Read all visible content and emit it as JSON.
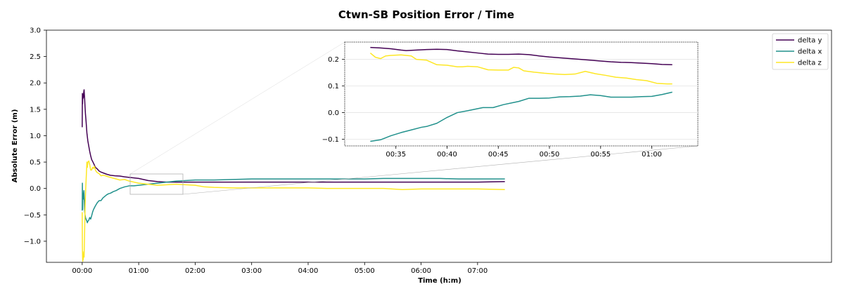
{
  "chart_data": {
    "type": "line",
    "title": "Ctwn-SB Position Error / Time",
    "xlabel": "Time (h:m)",
    "ylabel": "Absolute Error (m)",
    "x_unit": "minutes",
    "xlim": [
      -38,
      796
    ],
    "ylim": [
      -1.4,
      3.0
    ],
    "xticks": [
      {
        "v": 0,
        "label": "00:00"
      },
      {
        "v": 60,
        "label": "01:00"
      },
      {
        "v": 120,
        "label": "02:00"
      },
      {
        "v": 180,
        "label": "03:00"
      },
      {
        "v": 240,
        "label": "04:00"
      },
      {
        "v": 300,
        "label": "05:00"
      },
      {
        "v": 360,
        "label": "06:00"
      },
      {
        "v": 420,
        "label": "07:00"
      }
    ],
    "yticks": [
      {
        "v": -1.0,
        "label": "−1.0"
      },
      {
        "v": -0.5,
        "label": "−0.5"
      },
      {
        "v": 0.0,
        "label": "0.0"
      },
      {
        "v": 0.5,
        "label": "0.5"
      },
      {
        "v": 1.0,
        "label": "1.0"
      },
      {
        "v": 1.5,
        "label": "1.5"
      },
      {
        "v": 2.0,
        "label": "2.0"
      },
      {
        "v": 2.5,
        "label": "2.5"
      },
      {
        "v": 3.0,
        "label": "3.0"
      }
    ],
    "legend_position": "top-right",
    "series": [
      {
        "name": "delta y",
        "color": "#440154",
        "x": [
          0,
          0.2,
          0.4,
          0.6,
          0.8,
          1.0,
          1.2,
          1.5,
          1.8,
          2.0,
          2.3,
          2.6,
          3.0,
          3.5,
          4.0,
          5.0,
          6.0,
          7.0,
          8.0,
          9.0,
          10.0,
          12.0,
          14.0,
          16.0,
          18.0,
          20.0,
          23.0,
          26.0,
          30.0,
          35.0,
          40.0,
          45.0,
          50.0,
          55.0,
          60.0,
          65.0,
          70.0,
          80.0,
          90.0,
          100.0,
          110.0,
          120.0,
          140.0,
          160.0,
          180.0,
          200.0,
          220.0,
          240.0,
          260.0,
          280.0,
          300.0,
          320.0,
          340.0,
          360.0,
          380.0,
          400.0,
          420.0,
          449.0
        ],
        "y": [
          1.16,
          1.8,
          1.6,
          1.78,
          1.7,
          1.75,
          1.72,
          1.8,
          1.85,
          1.87,
          1.78,
          1.7,
          1.55,
          1.4,
          1.3,
          1.05,
          0.9,
          0.8,
          0.7,
          0.62,
          0.55,
          0.48,
          0.4,
          0.37,
          0.33,
          0.31,
          0.29,
          0.27,
          0.25,
          0.24,
          0.235,
          0.22,
          0.21,
          0.2,
          0.19,
          0.17,
          0.15,
          0.13,
          0.12,
          0.12,
          0.12,
          0.12,
          0.12,
          0.12,
          0.12,
          0.12,
          0.12,
          0.12,
          0.12,
          0.12,
          0.12,
          0.12,
          0.12,
          0.12,
          0.12,
          0.12,
          0.12,
          0.13
        ]
      },
      {
        "name": "delta x",
        "color": "#21918c",
        "x": [
          0,
          0.2,
          0.4,
          0.6,
          0.9,
          1.2,
          1.5,
          1.8,
          2.1,
          2.5,
          3.0,
          3.5,
          4.0,
          4.5,
          5.0,
          5.5,
          6.0,
          7.0,
          8.0,
          9.0,
          10.0,
          11.0,
          12.0,
          14.0,
          16.0,
          18.0,
          20.0,
          22.0,
          24.0,
          26.0,
          28.0,
          30.0,
          33.0,
          36.0,
          40.0,
          45.0,
          50.0,
          55.0,
          60.0,
          65.0,
          70.0,
          80.0,
          90.0,
          100.0,
          120.0,
          140.0,
          160.0,
          180.0,
          200.0,
          220.0,
          240.0,
          260.0,
          280.0,
          300.0,
          320.0,
          340.0,
          360.0,
          380.0,
          400.0,
          420.0,
          449.0
        ],
        "y": [
          -0.42,
          0.1,
          -0.4,
          -0.15,
          -0.1,
          -0.2,
          -0.08,
          -0.04,
          -0.18,
          -0.4,
          -0.5,
          -0.55,
          -0.58,
          -0.6,
          -0.62,
          -0.65,
          -0.62,
          -0.6,
          -0.55,
          -0.58,
          -0.52,
          -0.45,
          -0.4,
          -0.33,
          -0.27,
          -0.23,
          -0.23,
          -0.18,
          -0.15,
          -0.12,
          -0.1,
          -0.09,
          -0.06,
          -0.04,
          0.0,
          0.03,
          0.05,
          0.05,
          0.06,
          0.07,
          0.08,
          0.1,
          0.12,
          0.14,
          0.16,
          0.16,
          0.17,
          0.18,
          0.18,
          0.18,
          0.18,
          0.18,
          0.18,
          0.18,
          0.19,
          0.19,
          0.19,
          0.19,
          0.18,
          0.18,
          0.18
        ]
      },
      {
        "name": "delta z",
        "color": "#fde725",
        "x": [
          0,
          0.2,
          0.4,
          0.6,
          0.8,
          1.0,
          1.3,
          1.6,
          2.0,
          2.5,
          3.0,
          3.5,
          4.0,
          4.5,
          5.0,
          5.5,
          6.0,
          7.0,
          8.0,
          9.0,
          10.0,
          11.0,
          12.0,
          13.0,
          14.0,
          15.0,
          16.0,
          18.0,
          20.0,
          22.0,
          25.0,
          28.0,
          32.0,
          36.0,
          40.0,
          45.0,
          50.0,
          55.0,
          60.0,
          70.0,
          80.0,
          90.0,
          100.0,
          110.0,
          120.0,
          130.0,
          140.0,
          160.0,
          180.0,
          200.0,
          220.0,
          240.0,
          260.0,
          280.0,
          300.0,
          320.0,
          340.0,
          360.0,
          380.0,
          400.0,
          420.0,
          449.0
        ],
        "y": [
          -0.45,
          -1.1,
          -1.3,
          -1.38,
          -1.25,
          -1.35,
          -1.3,
          -1.2,
          -1.3,
          -0.9,
          -0.4,
          -0.1,
          0.1,
          0.3,
          0.5,
          0.4,
          0.5,
          0.52,
          0.45,
          0.35,
          0.35,
          0.4,
          0.38,
          0.42,
          0.35,
          0.32,
          0.3,
          0.28,
          0.24,
          0.25,
          0.24,
          0.22,
          0.2,
          0.18,
          0.16,
          0.17,
          0.14,
          0.12,
          0.1,
          0.08,
          0.06,
          0.07,
          0.08,
          0.07,
          0.06,
          0.03,
          0.02,
          0.01,
          0.01,
          0.01,
          0.01,
          0.01,
          0.0,
          0.0,
          0.0,
          0.0,
          -0.02,
          -0.01,
          -0.01,
          -0.01,
          -0.01,
          -0.02
        ]
      }
    ],
    "inset": {
      "xlim": [
        30,
        64.5
      ],
      "ylim": [
        -0.125,
        0.265
      ],
      "xticks": [
        {
          "v": 35,
          "label": "00:35"
        },
        {
          "v": 40,
          "label": "00:40"
        },
        {
          "v": 45,
          "label": "00:45"
        },
        {
          "v": 50,
          "label": "00:50"
        },
        {
          "v": 55,
          "label": "00:55"
        },
        {
          "v": 60,
          "label": "01:00"
        }
      ],
      "yticks": [
        {
          "v": -0.1,
          "label": "−0.1"
        },
        {
          "v": 0.0,
          "label": "0.0"
        },
        {
          "v": 0.1,
          "label": "0.1"
        },
        {
          "v": 0.2,
          "label": "0.2"
        }
      ],
      "grid": true,
      "series": [
        {
          "name": "delta y",
          "color": "#440154",
          "x": [
            32.5,
            33.5,
            34.5,
            35.5,
            36.0,
            37.0,
            38.0,
            39.0,
            40.0,
            41.0,
            42.0,
            43.0,
            44.0,
            45.0,
            46.0,
            47.0,
            48.0,
            49.0,
            50.0,
            51.0,
            52.0,
            53.0,
            54.0,
            55.0,
            56.0,
            57.0,
            58.0,
            59.0,
            60.0,
            61.0,
            62.0
          ],
          "y": [
            0.245,
            0.243,
            0.24,
            0.235,
            0.233,
            0.235,
            0.237,
            0.238,
            0.237,
            0.232,
            0.228,
            0.224,
            0.22,
            0.219,
            0.219,
            0.22,
            0.218,
            0.213,
            0.209,
            0.206,
            0.203,
            0.2,
            0.197,
            0.194,
            0.191,
            0.189,
            0.188,
            0.186,
            0.184,
            0.181,
            0.18
          ]
        },
        {
          "name": "delta x",
          "color": "#21918c",
          "x": [
            32.5,
            33.5,
            34.5,
            35.5,
            36.5,
            37.5,
            38.0,
            39.0,
            40.0,
            41.0,
            42.0,
            43.0,
            43.5,
            44.5,
            45.5,
            46.5,
            47.0,
            48.0,
            49.0,
            50.0,
            51.0,
            52.0,
            53.0,
            54.0,
            55.0,
            56.0,
            57.0,
            58.0,
            59.0,
            60.0,
            61.0,
            62.0
          ],
          "y": [
            -0.108,
            -0.102,
            -0.087,
            -0.075,
            -0.065,
            -0.055,
            -0.052,
            -0.04,
            -0.018,
            0.0,
            0.007,
            0.015,
            0.019,
            0.019,
            0.03,
            0.038,
            0.042,
            0.054,
            0.054,
            0.055,
            0.059,
            0.06,
            0.062,
            0.067,
            0.064,
            0.058,
            0.058,
            0.058,
            0.06,
            0.061,
            0.068,
            0.077
          ]
        },
        {
          "name": "delta z",
          "color": "#fde725",
          "x": [
            32.5,
            33.0,
            33.5,
            34.0,
            34.5,
            35.5,
            36.5,
            37.0,
            38.0,
            39.0,
            40.0,
            41.0,
            41.5,
            42.0,
            43.0,
            44.0,
            45.0,
            46.0,
            46.5,
            47.0,
            47.5,
            48.5,
            49.5,
            50.5,
            51.5,
            52.5,
            53.5,
            54.5,
            55.5,
            56.5,
            57.5,
            58.5,
            59.5,
            60.5,
            61.5,
            62.0
          ],
          "y": [
            0.224,
            0.208,
            0.203,
            0.213,
            0.215,
            0.217,
            0.213,
            0.2,
            0.197,
            0.18,
            0.178,
            0.172,
            0.172,
            0.174,
            0.172,
            0.161,
            0.16,
            0.16,
            0.17,
            0.168,
            0.157,
            0.152,
            0.148,
            0.145,
            0.143,
            0.145,
            0.155,
            0.146,
            0.14,
            0.133,
            0.13,
            0.124,
            0.12,
            0.11,
            0.108,
            0.108
          ]
        }
      ]
    }
  }
}
